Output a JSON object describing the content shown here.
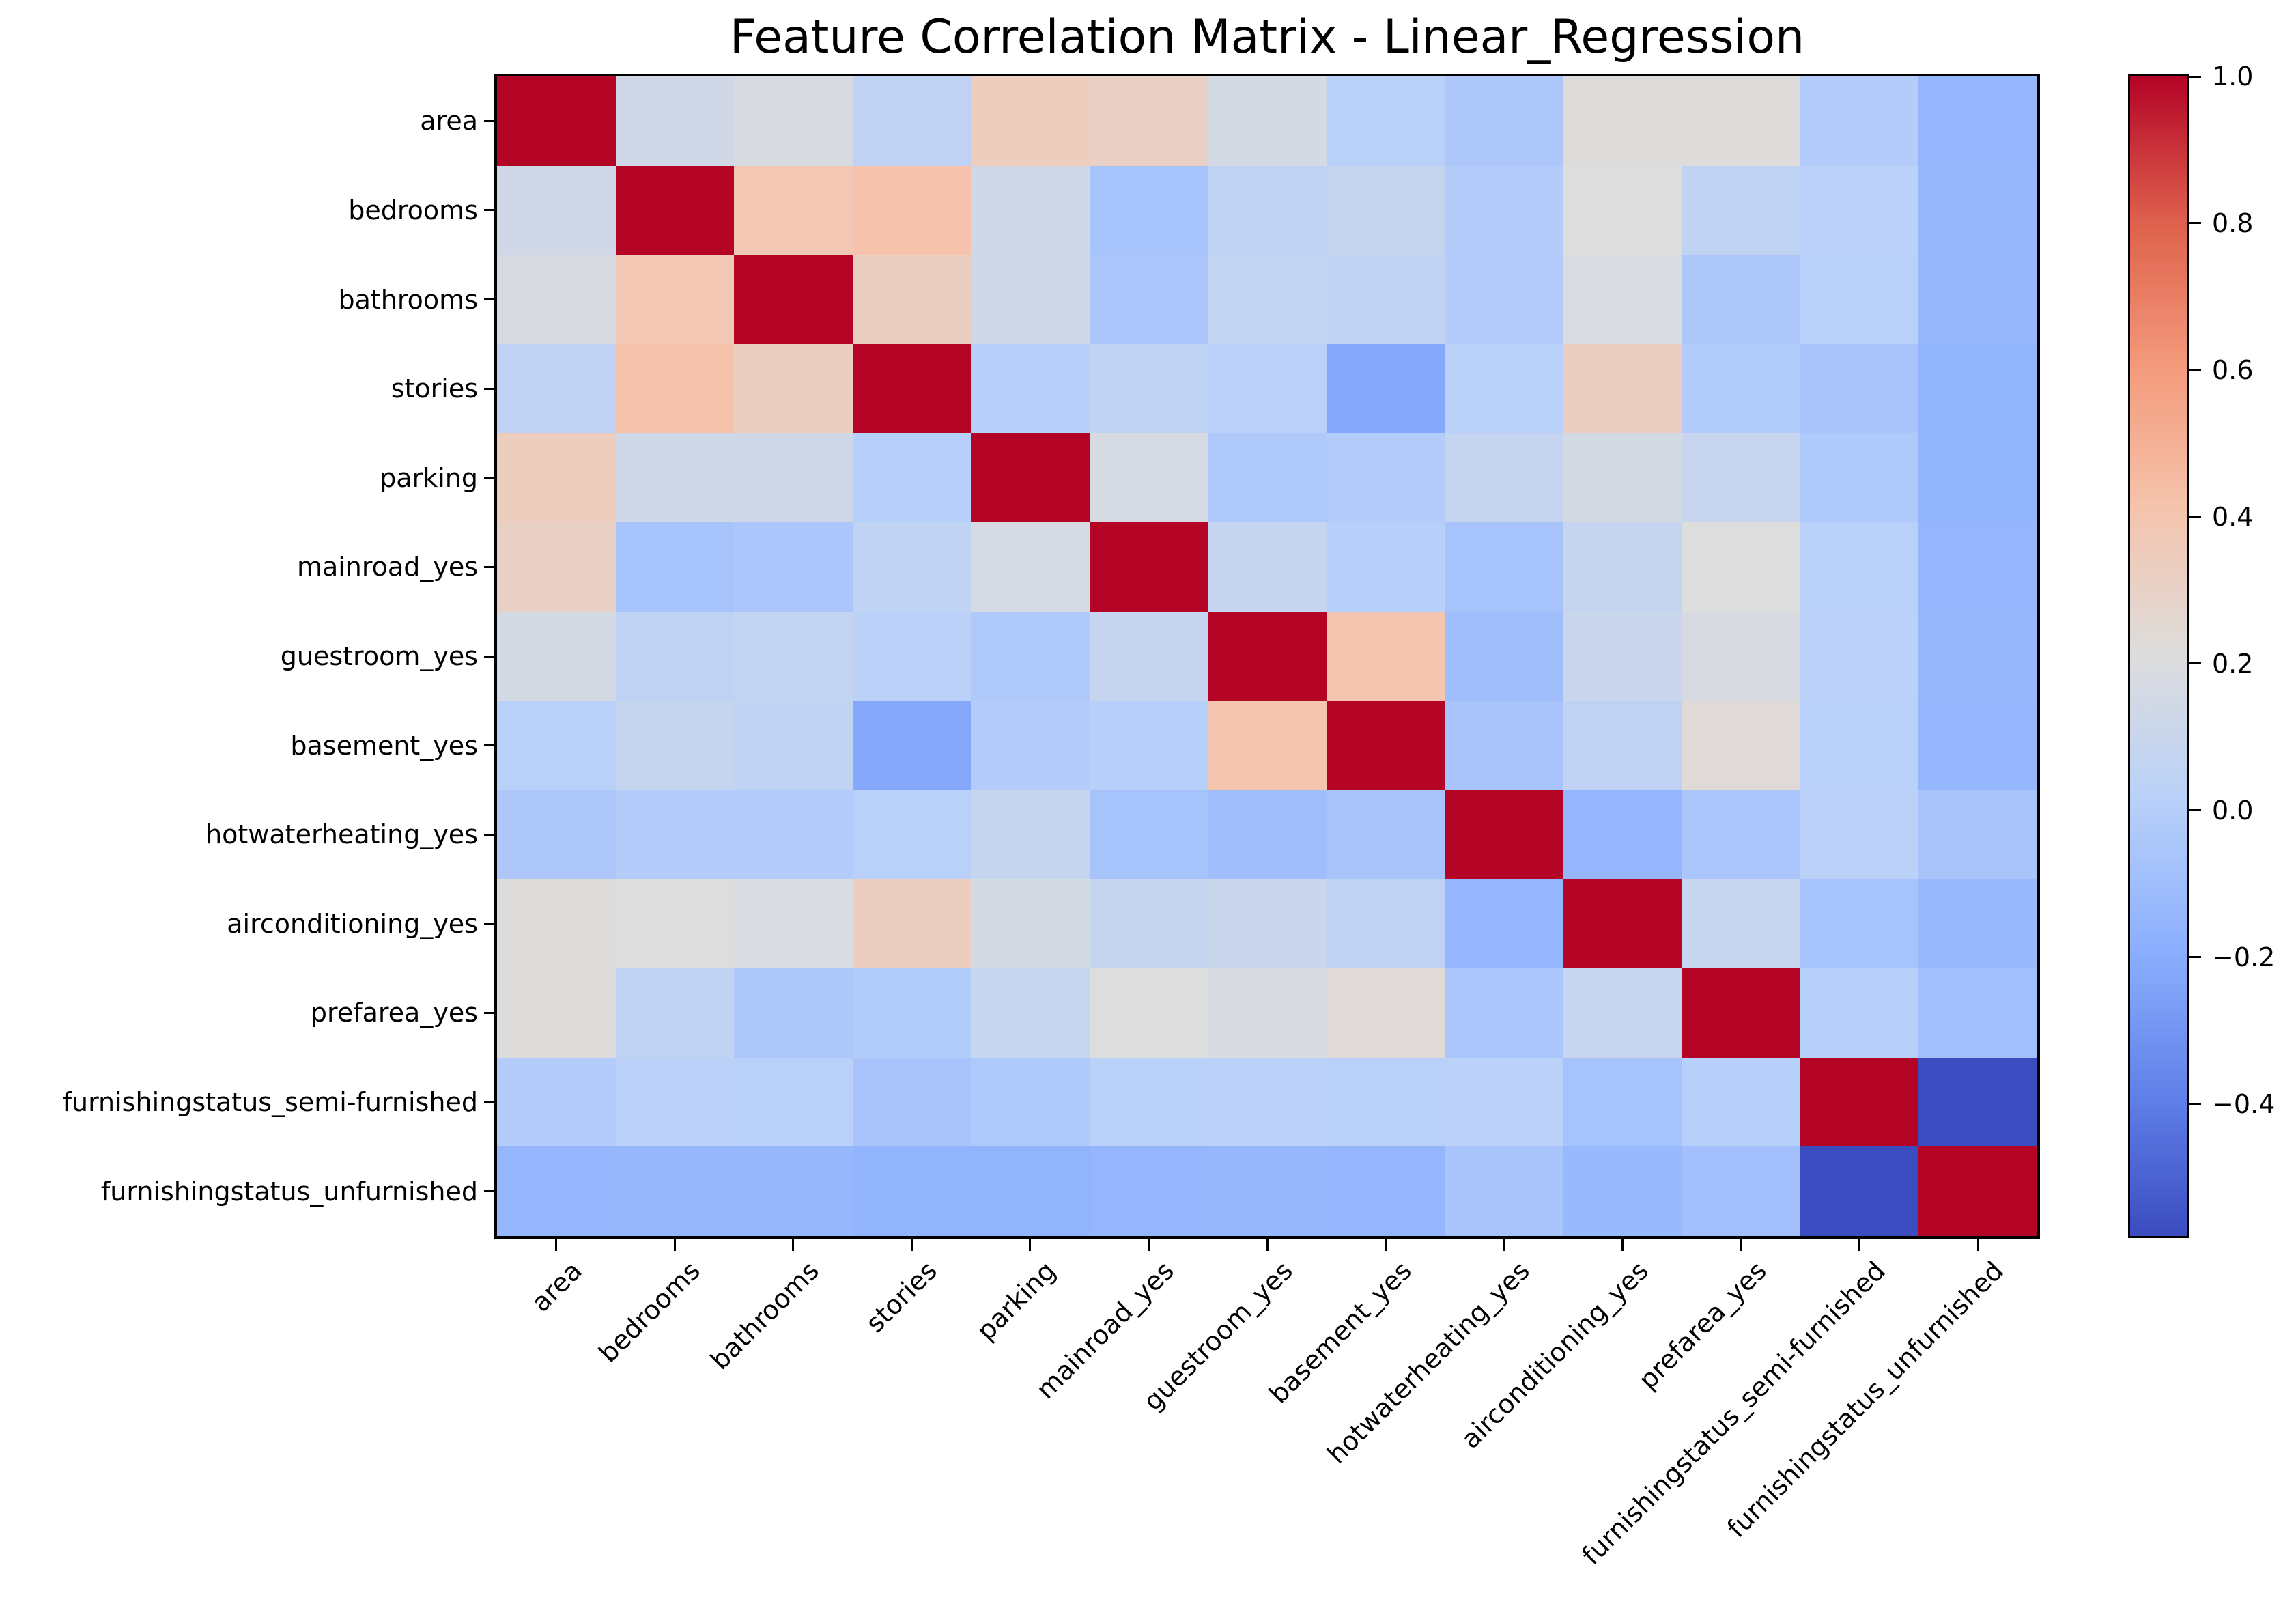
{
  "chart_data": {
    "type": "heatmap",
    "title": "Feature Correlation Matrix - Linear_Regression",
    "labels": [
      "area",
      "bedrooms",
      "bathrooms",
      "stories",
      "parking",
      "mainroad_yes",
      "guestroom_yes",
      "basement_yes",
      "hotwaterheating_yes",
      "airconditioning_yes",
      "prefarea_yes",
      "furnishingstatus_semi-furnished",
      "furnishingstatus_unfurnished"
    ],
    "matrix": [
      [
        1.0,
        0.14,
        0.18,
        0.05,
        0.34,
        0.31,
        0.16,
        0.02,
        -0.04,
        0.22,
        0.22,
        -0.01,
        -0.15
      ],
      [
        0.14,
        1.0,
        0.38,
        0.41,
        0.14,
        -0.07,
        0.05,
        0.08,
        -0.01,
        0.21,
        0.06,
        0.03,
        -0.14
      ],
      [
        0.18,
        0.38,
        1.0,
        0.33,
        0.14,
        -0.05,
        0.07,
        0.06,
        -0.01,
        0.19,
        -0.04,
        0.02,
        -0.14
      ],
      [
        0.05,
        0.41,
        0.33,
        1.0,
        0.01,
        0.06,
        0.03,
        -0.22,
        0.02,
        0.33,
        -0.02,
        -0.06,
        -0.16
      ],
      [
        0.34,
        0.14,
        0.14,
        0.01,
        1.0,
        0.17,
        -0.03,
        -0.01,
        0.08,
        0.16,
        0.09,
        -0.03,
        -0.16
      ],
      [
        0.31,
        -0.07,
        -0.05,
        0.06,
        0.17,
        1.0,
        0.08,
        0.01,
        -0.07,
        0.08,
        0.21,
        0.02,
        -0.15
      ],
      [
        0.16,
        0.05,
        0.07,
        0.03,
        -0.03,
        0.08,
        1.0,
        0.4,
        -0.1,
        0.11,
        0.18,
        0.03,
        -0.14
      ],
      [
        0.02,
        0.08,
        0.06,
        -0.22,
        -0.01,
        0.01,
        0.4,
        1.0,
        -0.06,
        0.05,
        0.23,
        0.02,
        -0.15
      ],
      [
        -0.04,
        -0.01,
        -0.01,
        0.02,
        0.08,
        -0.07,
        -0.1,
        -0.06,
        1.0,
        -0.15,
        -0.05,
        0.03,
        -0.06
      ],
      [
        0.22,
        0.21,
        0.19,
        0.33,
        0.16,
        0.08,
        0.11,
        0.05,
        -0.15,
        1.0,
        0.09,
        -0.07,
        -0.13
      ],
      [
        0.22,
        0.06,
        -0.04,
        -0.02,
        0.09,
        0.21,
        0.18,
        0.23,
        -0.05,
        0.09,
        1.0,
        0.01,
        -0.09
      ],
      [
        -0.01,
        0.03,
        0.02,
        -0.06,
        -0.03,
        0.02,
        0.03,
        0.02,
        0.03,
        -0.07,
        0.01,
        1.0,
        -0.58
      ],
      [
        -0.15,
        -0.14,
        -0.14,
        -0.16,
        -0.16,
        -0.15,
        -0.14,
        -0.15,
        -0.06,
        -0.13,
        -0.09,
        -0.58,
        1.0
      ]
    ],
    "vmin": -0.58,
    "vmax": 1.0,
    "colormap": {
      "name": "coolwarm",
      "anchors": [
        "#3b4cc0",
        "#6282ea",
        "#8db0fe",
        "#b8d0f9",
        "#dddddd",
        "#f5c4ad",
        "#f49a7b",
        "#de604d",
        "#b40426"
      ]
    },
    "colorbar_ticks": [
      {
        "value": 1.0,
        "label": "1.0"
      },
      {
        "value": 0.8,
        "label": "0.8"
      },
      {
        "value": 0.6,
        "label": "0.6"
      },
      {
        "value": 0.4,
        "label": "0.4"
      },
      {
        "value": 0.2,
        "label": "0.2"
      },
      {
        "value": 0.0,
        "label": "0.0"
      },
      {
        "value": -0.2,
        "label": "−0.2"
      },
      {
        "value": -0.4,
        "label": "−0.4"
      }
    ],
    "x_tick_rotation_deg": 45,
    "grid": false,
    "legend_position": "none"
  }
}
